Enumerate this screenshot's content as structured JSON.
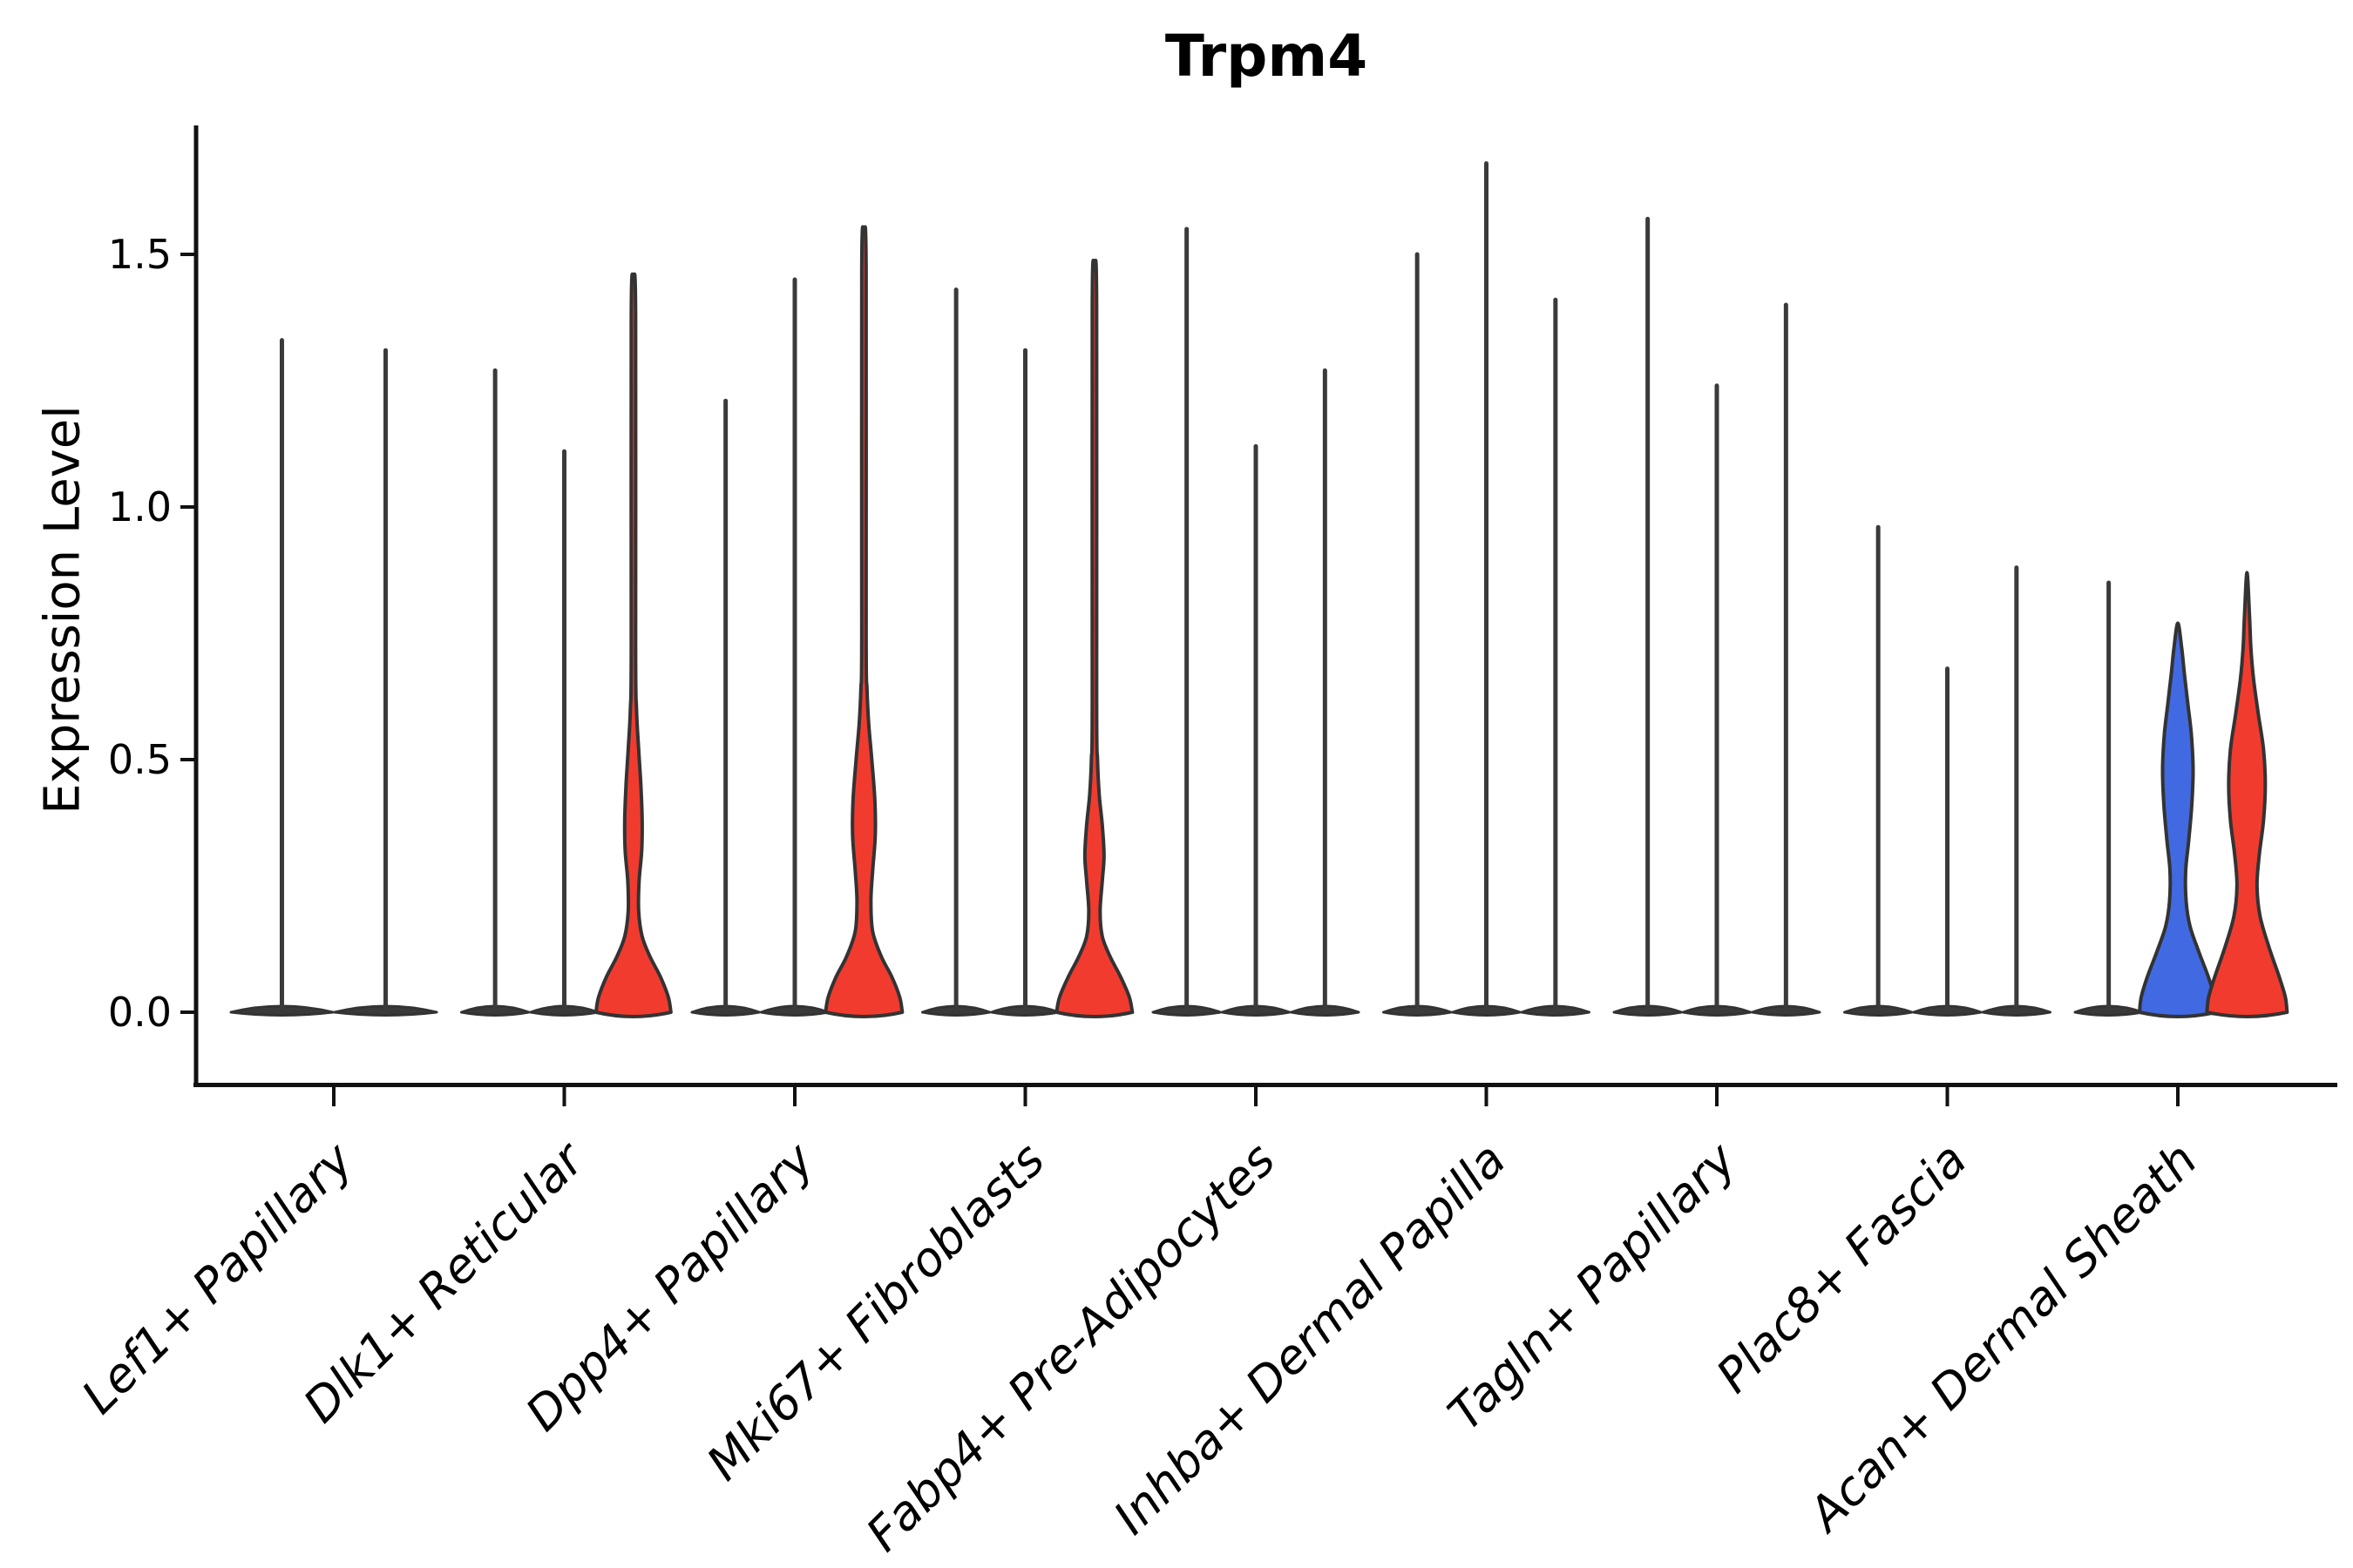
{
  "chart_data": {
    "type": "violin",
    "title": "Trpm4",
    "ylabel": "Expression Level",
    "xlabel": "",
    "ylim": [
      0,
      1.75
    ],
    "yticks": [
      0.0,
      0.5,
      1.0,
      1.5
    ],
    "ytick_labels": [
      "0.0",
      "0.5",
      "1.0",
      "1.5"
    ],
    "grid": "off",
    "legend": "none",
    "colors": {
      "red": "#F23B2F",
      "blue": "#4169E1",
      "outline": "#333333",
      "spike": "#3a3a3a",
      "axis": "#111111"
    },
    "categories": [
      "Lef1+ Papillary",
      "Dlk1+ Reticular",
      "Dpp4+ Papillary",
      "Mki67+ Fibroblasts",
      "Fabp4+ Pre-Adipocytes",
      "Inhba+ Dermal Papilla",
      "Tagln+ Papillary",
      "Plac8+ Fascia",
      "Acan+ Dermal Sheath"
    ],
    "groups": [
      {
        "category": "Lef1+ Papillary",
        "violins": [
          {
            "kind": "line",
            "max": 1.33
          },
          {
            "kind": "line",
            "max": 1.31
          }
        ]
      },
      {
        "category": "Dlk1+ Reticular",
        "violins": [
          {
            "kind": "line",
            "max": 1.27
          },
          {
            "kind": "line",
            "max": 1.11
          },
          {
            "kind": "violin",
            "color": "red",
            "max": 1.45,
            "profile": [
              [
                0,
                43
              ],
              [
                0.03,
                40
              ],
              [
                0.07,
                31
              ],
              [
                0.11,
                19
              ],
              [
                0.15,
                10
              ],
              [
                0.2,
                6
              ],
              [
                0.26,
                6.5
              ],
              [
                0.32,
                9.5
              ],
              [
                0.38,
                10
              ],
              [
                0.45,
                8.5
              ],
              [
                0.52,
                6
              ],
              [
                0.6,
                3.5
              ],
              [
                0.72,
                2.5
              ],
              [
                1.38,
                2.5
              ],
              [
                1.45,
                0
              ]
            ]
          }
        ]
      },
      {
        "category": "Dpp4+ Papillary",
        "violins": [
          {
            "kind": "line",
            "max": 1.21
          },
          {
            "kind": "line",
            "max": 1.45
          },
          {
            "kind": "violin",
            "color": "red",
            "max": 1.54,
            "profile": [
              [
                0,
                44
              ],
              [
                0.03,
                41
              ],
              [
                0.07,
                32
              ],
              [
                0.11,
                20
              ],
              [
                0.16,
                10
              ],
              [
                0.22,
                8
              ],
              [
                0.28,
                10
              ],
              [
                0.35,
                13
              ],
              [
                0.42,
                12.5
              ],
              [
                0.5,
                9
              ],
              [
                0.57,
                5.5
              ],
              [
                0.64,
                3.5
              ],
              [
                0.75,
                2.5
              ],
              [
                1.47,
                2.5
              ],
              [
                1.54,
                0
              ]
            ]
          }
        ]
      },
      {
        "category": "Mki67+ Fibroblasts",
        "violins": [
          {
            "kind": "line",
            "max": 1.43
          },
          {
            "kind": "line",
            "max": 1.31
          },
          {
            "kind": "violin",
            "color": "red",
            "max": 1.47,
            "profile": [
              [
                0,
                43.5
              ],
              [
                0.03,
                40
              ],
              [
                0.07,
                30
              ],
              [
                0.11,
                18
              ],
              [
                0.15,
                9
              ],
              [
                0.2,
                6.5
              ],
              [
                0.26,
                9
              ],
              [
                0.31,
                11
              ],
              [
                0.37,
                9
              ],
              [
                0.43,
                5.5
              ],
              [
                0.5,
                3.5
              ],
              [
                0.62,
                2.5
              ],
              [
                1.4,
                2.5
              ],
              [
                1.47,
                0
              ]
            ]
          }
        ]
      },
      {
        "category": "Fabp4+ Pre-Adipocytes",
        "violins": [
          {
            "kind": "line",
            "max": 1.55
          },
          {
            "kind": "line",
            "max": 1.12
          },
          {
            "kind": "line",
            "max": 1.27
          }
        ]
      },
      {
        "category": "Inhba+ Dermal Papilla",
        "violins": [
          {
            "kind": "line",
            "max": 1.5
          },
          {
            "kind": "line",
            "max": 1.68
          },
          {
            "kind": "line",
            "max": 1.41
          }
        ]
      },
      {
        "category": "Tagln+ Papillary",
        "violins": [
          {
            "kind": "line",
            "max": 1.57
          },
          {
            "kind": "line",
            "max": 1.24
          },
          {
            "kind": "line",
            "max": 1.4
          }
        ]
      },
      {
        "category": "Plac8+ Fascia",
        "violins": [
          {
            "kind": "line",
            "max": 0.96
          },
          {
            "kind": "line",
            "max": 0.68
          },
          {
            "kind": "line",
            "max": 0.88
          }
        ]
      },
      {
        "category": "Acan+ Dermal Sheath",
        "violins": [
          {
            "kind": "line",
            "max": 0.85
          },
          {
            "kind": "violin",
            "color": "blue",
            "max": 0.77,
            "profile": [
              [
                0,
                44
              ],
              [
                0.03,
                42
              ],
              [
                0.07,
                35
              ],
              [
                0.12,
                24
              ],
              [
                0.17,
                14
              ],
              [
                0.22,
                9.5
              ],
              [
                0.28,
                9
              ],
              [
                0.34,
                12.5
              ],
              [
                0.41,
                16
              ],
              [
                0.48,
                17.5
              ],
              [
                0.55,
                15.5
              ],
              [
                0.61,
                11.5
              ],
              [
                0.67,
                7.5
              ],
              [
                0.72,
                4.5
              ],
              [
                0.77,
                0
              ]
            ]
          },
          {
            "kind": "violin",
            "color": "red",
            "max": 0.87,
            "profile": [
              [
                0,
                46
              ],
              [
                0.03,
                44
              ],
              [
                0.07,
                37
              ],
              [
                0.13,
                25
              ],
              [
                0.19,
                15
              ],
              [
                0.25,
                11.5
              ],
              [
                0.31,
                14
              ],
              [
                0.38,
                19
              ],
              [
                0.45,
                21
              ],
              [
                0.52,
                19
              ],
              [
                0.59,
                13
              ],
              [
                0.66,
                7.5
              ],
              [
                0.72,
                4.5
              ],
              [
                0.78,
                3
              ],
              [
                0.87,
                0
              ]
            ]
          }
        ]
      }
    ]
  }
}
